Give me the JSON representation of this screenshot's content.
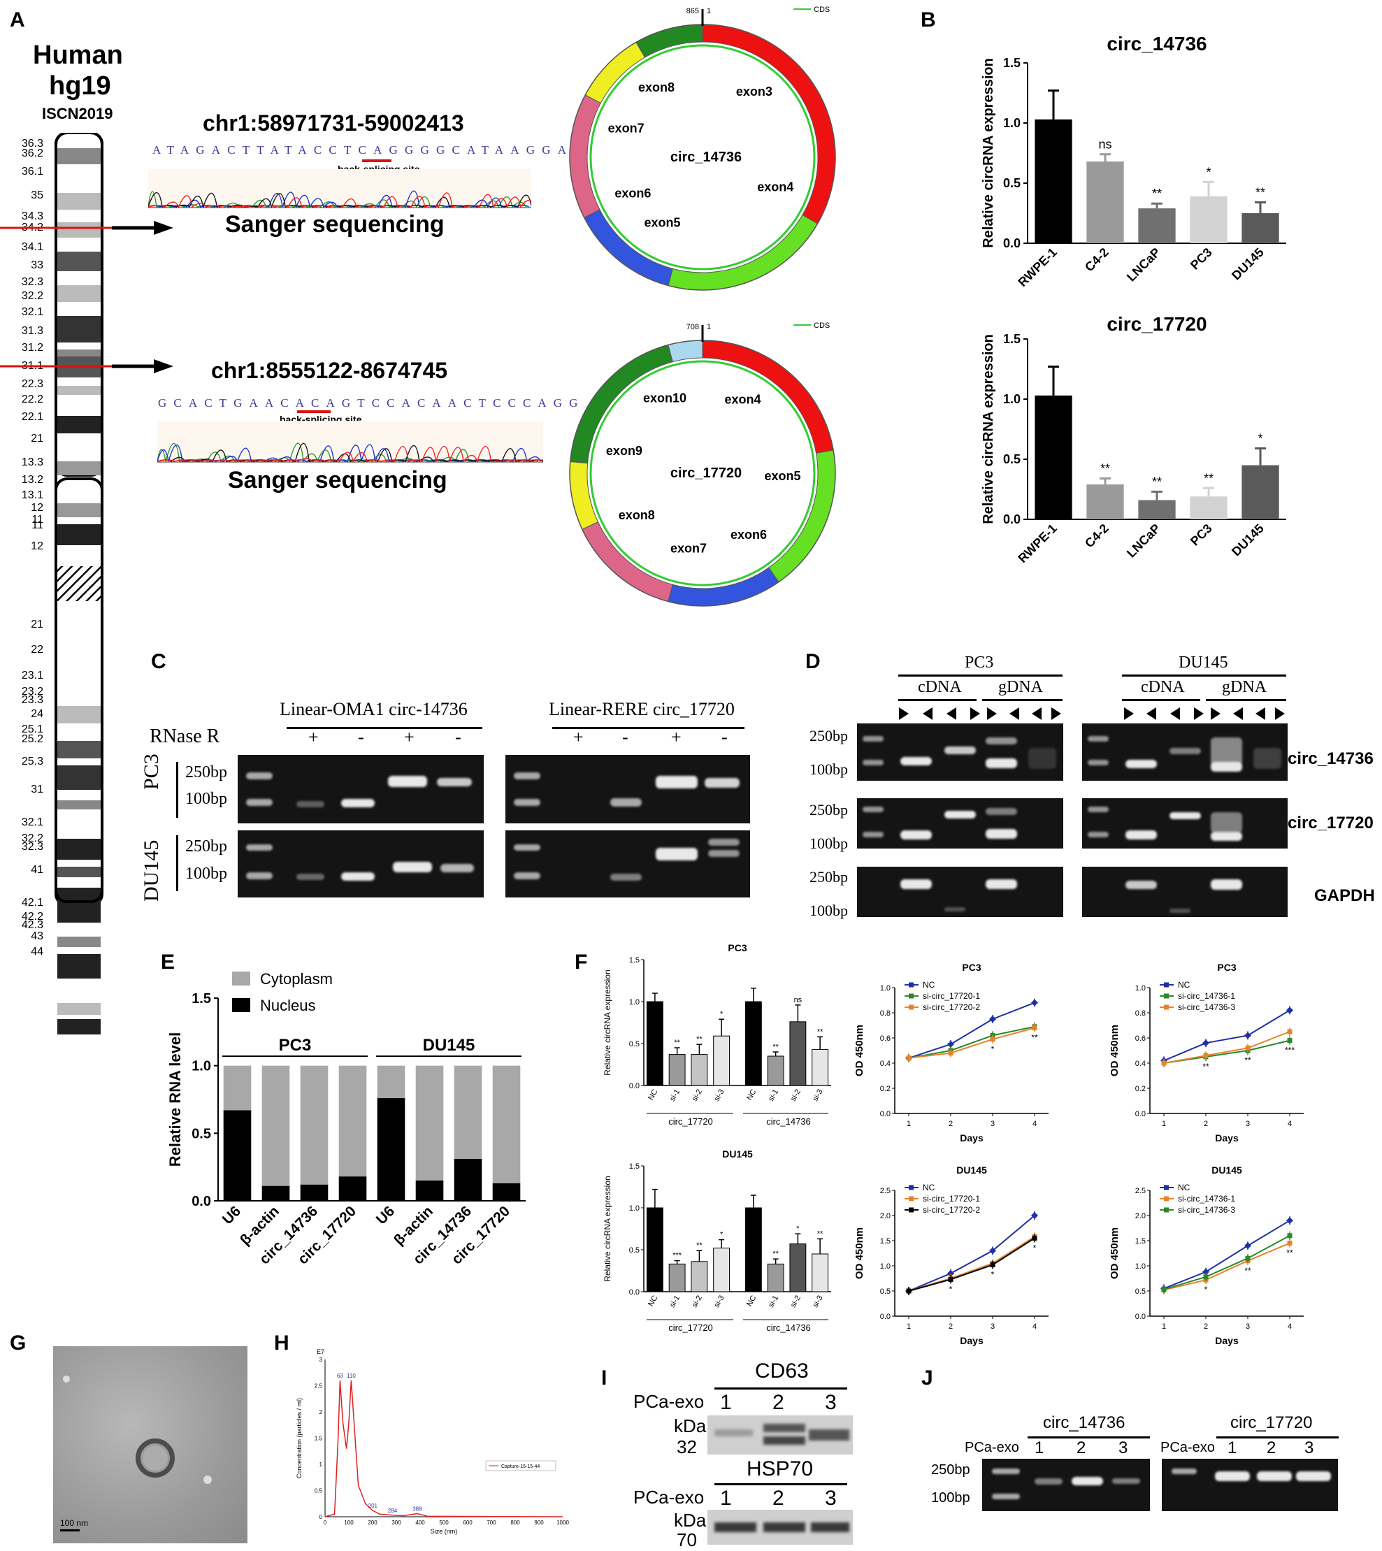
{
  "panels": {
    "A": "A",
    "B": "B",
    "C": "C",
    "D": "D",
    "E": "E",
    "F": "F",
    "G": "G",
    "H": "H",
    "I": "I",
    "J": "J"
  },
  "ideogram": {
    "title1": "Human",
    "title2": "hg19",
    "title3": "ISCN2019",
    "bands_p": [
      "36.3",
      "36.2",
      "36.1",
      "35",
      "34.3",
      "34.2",
      "34.1",
      "33",
      "32.3",
      "32.2",
      "32.1",
      "31.3",
      "31.2",
      "31.1",
      "22.3",
      "22.2",
      "22.1",
      "21",
      "13.3",
      "13.2",
      "13.1",
      "12",
      "11"
    ],
    "bands_q": [
      "11",
      "12",
      "21",
      "22",
      "23.1",
      "23.2",
      "23.3",
      "24",
      "25.1",
      "25.2",
      "25.3",
      "31",
      "32.1",
      "32.2",
      "32.3",
      "41",
      "42.1",
      "42.2",
      "42.3",
      "43",
      "44"
    ]
  },
  "sanger": [
    {
      "coord": "chr1:58971731-59002413",
      "seq": "ATAGACTTATACCTCAGGGGCATAAGGA",
      "site": "back-splicing site",
      "label": "Sanger sequencing"
    },
    {
      "coord": "chr1:8555122-8674745",
      "seq": "GCACTGAACACAGTCCACAACTCCCAGG",
      "site": "back-splicing site",
      "label": "Sanger sequencing"
    }
  ],
  "circles": [
    {
      "name": "circ_14736",
      "len": "865",
      "start": "1",
      "legend": "CDS",
      "exons": [
        "exon3",
        "exon4",
        "exon5",
        "exon6",
        "exon7",
        "exon8"
      ]
    },
    {
      "name": "circ_17720",
      "len": "708",
      "start": "1",
      "legend": "CDS",
      "exons": [
        "exon4",
        "exon5",
        "exon6",
        "exon7",
        "exon8",
        "exon9",
        "exon10"
      ]
    }
  ],
  "chart_data": [
    {
      "id": "B1",
      "type": "bar",
      "title": "circ_14736",
      "ylabel": "Relative circRNA expression",
      "ylim": [
        0,
        1.5
      ],
      "yticks": [
        "0.0",
        "0.5",
        "1.0",
        "1.5"
      ],
      "categories": [
        "RWPE-1",
        "C4-2",
        "LNCaP",
        "PC3",
        "DU145"
      ],
      "values": [
        1.03,
        0.68,
        0.29,
        0.39,
        0.25
      ],
      "errors": [
        0.24,
        0.06,
        0.04,
        0.12,
        0.09
      ],
      "sig": [
        "",
        "ns",
        "**",
        "*",
        "**"
      ],
      "colors": [
        "#000000",
        "#9a9a9a",
        "#707070",
        "#d2d2d2",
        "#5a5a5a"
      ]
    },
    {
      "id": "B2",
      "type": "bar",
      "title": "circ_17720",
      "ylabel": "Relative circRNA expression",
      "ylim": [
        0,
        1.5
      ],
      "yticks": [
        "0.0",
        "0.5",
        "1.0",
        "1.5"
      ],
      "categories": [
        "RWPE-1",
        "C4-2",
        "LNCaP",
        "PC3",
        "DU145"
      ],
      "values": [
        1.03,
        0.29,
        0.16,
        0.19,
        0.45
      ],
      "errors": [
        0.24,
        0.05,
        0.07,
        0.07,
        0.14
      ],
      "sig": [
        "",
        "**",
        "**",
        "**",
        "*"
      ],
      "colors": [
        "#000000",
        "#9a9a9a",
        "#707070",
        "#d2d2d2",
        "#5a5a5a"
      ]
    },
    {
      "id": "E",
      "type": "bar",
      "ylabel": "Relative RNA level",
      "ylim": [
        0,
        1.5
      ],
      "yticks": [
        "0.0",
        "0.5",
        "1.0",
        "1.5"
      ],
      "legend": [
        "Cytoplasm",
        "Nucleus"
      ],
      "groups": [
        "PC3",
        "DU145"
      ],
      "categories": [
        "U6",
        "β-actin",
        "circ_14736",
        "circ_17720",
        "U6",
        "β-actin",
        "circ_14736",
        "circ_17720"
      ],
      "nucleus": [
        0.67,
        0.11,
        0.12,
        0.18,
        0.76,
        0.15,
        0.31,
        0.13
      ],
      "cytoplasm": [
        0.33,
        0.89,
        0.88,
        0.82,
        0.24,
        0.85,
        0.69,
        0.87
      ]
    },
    {
      "id": "F1",
      "type": "bar",
      "title": "PC3",
      "ylabel": "Relative circRNA expression",
      "ylim": [
        0,
        1.5
      ],
      "yticks": [
        "0.0",
        "0.5",
        "1.0",
        "1.5"
      ],
      "categories": [
        "NC",
        "si-1",
        "si-2",
        "si-3",
        "NC",
        "si-1",
        "si-2",
        "si-3"
      ],
      "groups": [
        "circ_17720",
        "circ_14736"
      ],
      "values": [
        1.0,
        0.37,
        0.37,
        0.59,
        1.0,
        0.35,
        0.76,
        0.43
      ],
      "errors": [
        0.1,
        0.08,
        0.12,
        0.2,
        0.16,
        0.05,
        0.2,
        0.15
      ],
      "sig": [
        "",
        "**",
        "**",
        "*",
        "",
        "**",
        "ns",
        "**"
      ],
      "colors": [
        "#000000",
        "#9a9a9a",
        "#c4c4c4",
        "#e6e6e6",
        "#000000",
        "#9a9a9a",
        "#555555",
        "#e6e6e6"
      ]
    },
    {
      "id": "F2",
      "type": "bar",
      "title": "DU145",
      "ylabel": "Relative circRNA expression",
      "ylim": [
        0,
        1.5
      ],
      "yticks": [
        "0.0",
        "0.5",
        "1.0",
        "1.5"
      ],
      "categories": [
        "NC",
        "si-1",
        "si-2",
        "si-3",
        "NC",
        "si-1",
        "si-2",
        "si-3"
      ],
      "groups": [
        "circ_17720",
        "circ_14736"
      ],
      "values": [
        1.0,
        0.33,
        0.36,
        0.52,
        1.0,
        0.33,
        0.57,
        0.45
      ],
      "errors": [
        0.22,
        0.04,
        0.13,
        0.1,
        0.15,
        0.06,
        0.12,
        0.18
      ],
      "sig": [
        "",
        "***",
        "**",
        "*",
        "",
        "**",
        "*",
        "**"
      ],
      "colors": [
        "#000000",
        "#9a9a9a",
        "#c4c4c4",
        "#e6e6e6",
        "#000000",
        "#9a9a9a",
        "#555555",
        "#e6e6e6"
      ]
    },
    {
      "id": "F3",
      "type": "line",
      "title": "PC3",
      "xlabel": "Days",
      "ylabel": "OD 450nm",
      "x": [
        1,
        2,
        3,
        4
      ],
      "ylim": [
        0,
        1.0
      ],
      "yticks": [
        "0.0",
        "0.2",
        "0.4",
        "0.6",
        "0.8",
        "1.0"
      ],
      "series": [
        {
          "name": "NC",
          "values": [
            0.44,
            0.55,
            0.75,
            0.88
          ],
          "color": "#1f2fa8"
        },
        {
          "name": "si-circ_17720-1",
          "values": [
            0.44,
            0.5,
            0.62,
            0.69
          ],
          "color": "#2a8a2a"
        },
        {
          "name": "si-circ_17720-2",
          "values": [
            0.44,
            0.48,
            0.59,
            0.68
          ],
          "color": "#e8822a"
        }
      ],
      "sig": [
        "",
        "",
        "*",
        "**"
      ]
    },
    {
      "id": "F4",
      "type": "line",
      "title": "PC3",
      "xlabel": "Days",
      "ylabel": "OD 450nm",
      "x": [
        1,
        2,
        3,
        4
      ],
      "ylim": [
        0,
        1.0
      ],
      "yticks": [
        "0.0",
        "0.2",
        "0.4",
        "0.6",
        "0.8",
        "1.0"
      ],
      "series": [
        {
          "name": "NC",
          "values": [
            0.42,
            0.56,
            0.62,
            0.82
          ],
          "color": "#1f2fa8"
        },
        {
          "name": "si-circ_14736-1",
          "values": [
            0.4,
            0.45,
            0.5,
            0.58
          ],
          "color": "#2a8a2a"
        },
        {
          "name": "si-circ_14736-3",
          "values": [
            0.4,
            0.46,
            0.52,
            0.65
          ],
          "color": "#e8822a"
        }
      ],
      "sig": [
        "",
        "**",
        "**",
        "***"
      ]
    },
    {
      "id": "F5",
      "type": "line",
      "title": "DU145",
      "xlabel": "Days",
      "ylabel": "OD 450nm",
      "x": [
        1,
        2,
        3,
        4
      ],
      "ylim": [
        0,
        2.5
      ],
      "yticks": [
        "0.0",
        "0.5",
        "1.0",
        "1.5",
        "2.0",
        "2.5"
      ],
      "series": [
        {
          "name": "NC",
          "values": [
            0.5,
            0.85,
            1.3,
            2.0
          ],
          "color": "#1f2fa8"
        },
        {
          "name": "si-circ_17720-1",
          "values": [
            0.5,
            0.75,
            1.05,
            1.58
          ],
          "color": "#e8822a"
        },
        {
          "name": "si-circ_17720-2",
          "values": [
            0.5,
            0.73,
            1.02,
            1.55
          ],
          "color": "#000000"
        }
      ],
      "sig": [
        "",
        "*",
        "*",
        "*"
      ]
    },
    {
      "id": "F6",
      "type": "line",
      "title": "DU145",
      "xlabel": "Days",
      "ylabel": "OD 450nm",
      "x": [
        1,
        2,
        3,
        4
      ],
      "ylim": [
        0,
        2.5
      ],
      "yticks": [
        "0.0",
        "0.5",
        "1.0",
        "1.5",
        "2.0",
        "2.5"
      ],
      "series": [
        {
          "name": "NC",
          "values": [
            0.55,
            0.88,
            1.4,
            1.9
          ],
          "color": "#1f2fa8"
        },
        {
          "name": "si-circ_14736-1",
          "values": [
            0.52,
            0.72,
            1.1,
            1.45
          ],
          "color": "#e8822a"
        },
        {
          "name": "si-circ_14736-3",
          "values": [
            0.53,
            0.78,
            1.15,
            1.6
          ],
          "color": "#2a8a2a"
        }
      ],
      "sig": [
        "",
        "*",
        "**",
        "**"
      ]
    },
    {
      "id": "H",
      "type": "line",
      "ylabel": "Concentration (particles / ml)",
      "xlabel": "Size (nm)",
      "yunit": "E7",
      "xlim": [
        0,
        1000
      ],
      "ylim": [
        0,
        3
      ],
      "xticks": [
        "0",
        "50",
        "100",
        "150",
        "200",
        "250",
        "300",
        "350",
        "400",
        "450",
        "500",
        "550",
        "600",
        "650",
        "700",
        "750",
        "800",
        "850",
        "900",
        "950",
        "1000"
      ],
      "yticks": [
        "0",
        "0.5",
        "1",
        "1.5",
        "2",
        "2.5",
        "3"
      ],
      "peaks": [
        "63",
        "110",
        "201",
        "284",
        "388"
      ],
      "legend": "Capture-15-15-44"
    }
  ],
  "gelC": {
    "rnase": "RNase R",
    "lanes1": "Linear-OMA1 circ-14736",
    "lanes2": "Linear-RERE  circ_17720",
    "signs": [
      "+",
      "-",
      "+",
      "-"
    ],
    "rows": [
      "PC3",
      "DU145"
    ],
    "markers": [
      "250bp",
      "100bp"
    ]
  },
  "gelD": {
    "cells": [
      "PC3",
      "DU145"
    ],
    "templates": [
      "cDNA",
      "gDNA"
    ],
    "rows": [
      "circ_14736",
      "circ_17720",
      "GAPDH"
    ],
    "markers": [
      "250bp",
      "100bp"
    ]
  },
  "scale": {
    "g": "100 nm"
  },
  "gelI": {
    "top": "CD63",
    "bottom": "HSP70",
    "row": "PCa-exo",
    "kda": "kDa",
    "kda1": "32",
    "kda2": "70",
    "lanes": [
      "1",
      "2",
      "3"
    ]
  },
  "gelJ": {
    "a": "circ_14736",
    "b": "circ_17720",
    "row": "PCa-exo",
    "lanes": [
      "1",
      "2",
      "3"
    ],
    "markers": [
      "250bp",
      "100bp"
    ]
  }
}
